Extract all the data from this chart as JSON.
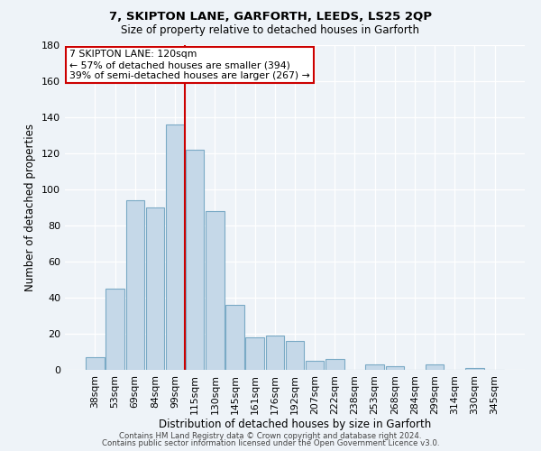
{
  "title": "7, SKIPTON LANE, GARFORTH, LEEDS, LS25 2QP",
  "subtitle": "Size of property relative to detached houses in Garforth",
  "xlabel": "Distribution of detached houses by size in Garforth",
  "ylabel": "Number of detached properties",
  "bar_labels": [
    "38sqm",
    "53sqm",
    "69sqm",
    "84sqm",
    "99sqm",
    "115sqm",
    "130sqm",
    "145sqm",
    "161sqm",
    "176sqm",
    "192sqm",
    "207sqm",
    "222sqm",
    "238sqm",
    "253sqm",
    "268sqm",
    "284sqm",
    "299sqm",
    "314sqm",
    "330sqm",
    "345sqm"
  ],
  "bar_values": [
    7,
    45,
    94,
    90,
    136,
    122,
    88,
    36,
    18,
    19,
    16,
    5,
    6,
    0,
    3,
    2,
    0,
    3,
    0,
    1,
    0
  ],
  "bar_color": "#c5d8e8",
  "bar_edge_color": "#7aaac5",
  "background_color": "#eef3f8",
  "grid_color": "#ffffff",
  "vline_color": "#cc0000",
  "annotation_box_text": "7 SKIPTON LANE: 120sqm\n← 57% of detached houses are smaller (394)\n39% of semi-detached houses are larger (267) →",
  "annotation_box_color": "#cc0000",
  "ylim": [
    0,
    180
  ],
  "yticks": [
    0,
    20,
    40,
    60,
    80,
    100,
    120,
    140,
    160,
    180
  ],
  "footer1": "Contains HM Land Registry data © Crown copyright and database right 2024.",
  "footer2": "Contains public sector information licensed under the Open Government Licence v3.0."
}
